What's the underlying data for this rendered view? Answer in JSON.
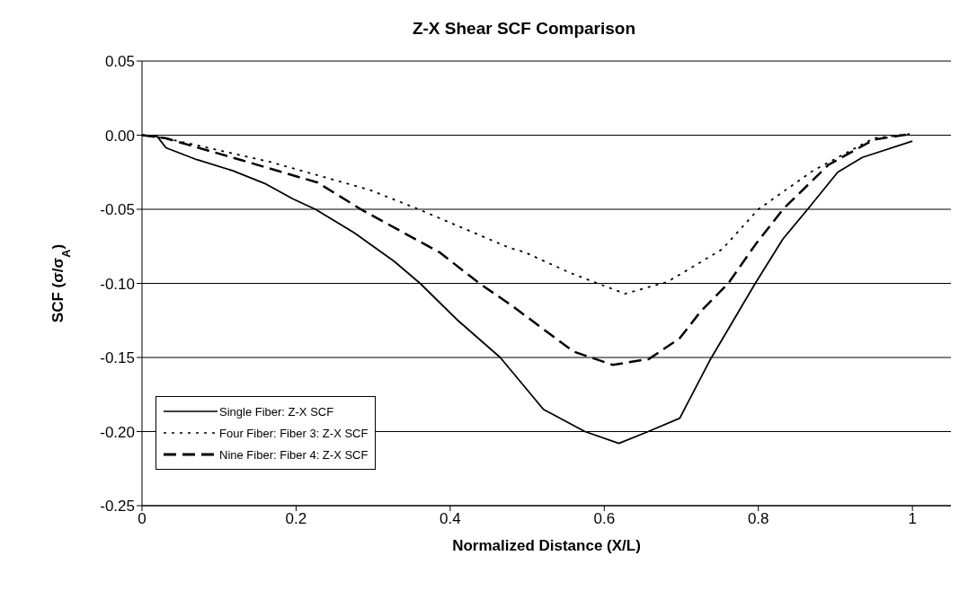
{
  "chart_data": {
    "type": "line",
    "title": "Z-X Shear SCF Comparison",
    "xlabel": "Normalized Distance (X/L)",
    "ylabel": "SCF (σ/σ$_{A}$)",
    "xlim": [
      0,
      1.05
    ],
    "xticks": [
      0,
      0.2,
      0.4,
      0.6,
      0.8,
      1
    ],
    "ylim": [
      -0.25,
      0.05
    ],
    "yticks": [
      {
        "value": -0.25,
        "label": "-0.25"
      },
      {
        "value": -0.2,
        "label": "-0.20"
      },
      {
        "value": -0.15,
        "label": "-0.15"
      },
      {
        "value": -0.1,
        "label": "-0.10"
      },
      {
        "value": -0.05,
        "label": "-0.05"
      },
      {
        "value": 0,
        "label": "0.00"
      },
      {
        "value": 0.05,
        "label": "0.05"
      }
    ],
    "grid": "y",
    "legend": "bottom left",
    "marker": "none",
    "series": [
      {
        "name": "Single Fiber: Z-X SCF",
        "color": "#000000",
        "line_style": "solid",
        "x": [
          0,
          0.02,
          0.031,
          0.071,
          0.118,
          0.161,
          0.196,
          0.225,
          0.276,
          0.327,
          0.361,
          0.41,
          0.465,
          0.521,
          0.575,
          0.619,
          0.657,
          0.698,
          0.737,
          0.796,
          0.832,
          0.864,
          0.903,
          0.935,
          1.0
        ],
        "values": [
          0,
          -0.001,
          -0.0085,
          -0.0165,
          -0.024,
          -0.033,
          -0.043,
          -0.05,
          -0.066,
          -0.085,
          -0.1,
          -0.125,
          -0.15,
          -0.185,
          -0.2,
          -0.208,
          -0.2,
          -0.191,
          -0.152,
          -0.1,
          -0.07,
          -0.05,
          -0.025,
          -0.015,
          -0.004
        ]
      },
      {
        "name": "Four Fiber: Fiber 3: Z-X SCF",
        "color": "#000000",
        "line_style": "dotted",
        "x": [
          0,
          0.03,
          0.166,
          0.296,
          0.359,
          0.477,
          0.497,
          0.556,
          0.627,
          0.682,
          0.753,
          0.8,
          0.871,
          0.95,
          1.0
        ],
        "values": [
          0,
          -0.002,
          -0.018,
          -0.037,
          -0.05,
          -0.076,
          -0.079,
          -0.093,
          -0.107,
          -0.099,
          -0.077,
          -0.05,
          -0.024,
          -0.002,
          0.001
        ]
      },
      {
        "name": "Nine Fiber: Fiber 4: Z-X SCF",
        "color": "#000000",
        "line_style": "dashed",
        "x": [
          0,
          0.03,
          0.13,
          0.228,
          0.284,
          0.386,
          0.438,
          0.48,
          0.56,
          0.611,
          0.658,
          0.698,
          0.725,
          0.761,
          0.796,
          0.832,
          0.891,
          0.95,
          1.0
        ],
        "values": [
          0,
          -0.002,
          -0.017,
          -0.032,
          -0.05,
          -0.079,
          -0.1,
          -0.115,
          -0.146,
          -0.155,
          -0.151,
          -0.137,
          -0.119,
          -0.1,
          -0.074,
          -0.05,
          -0.02,
          -0.003,
          0.001
        ]
      }
    ]
  }
}
